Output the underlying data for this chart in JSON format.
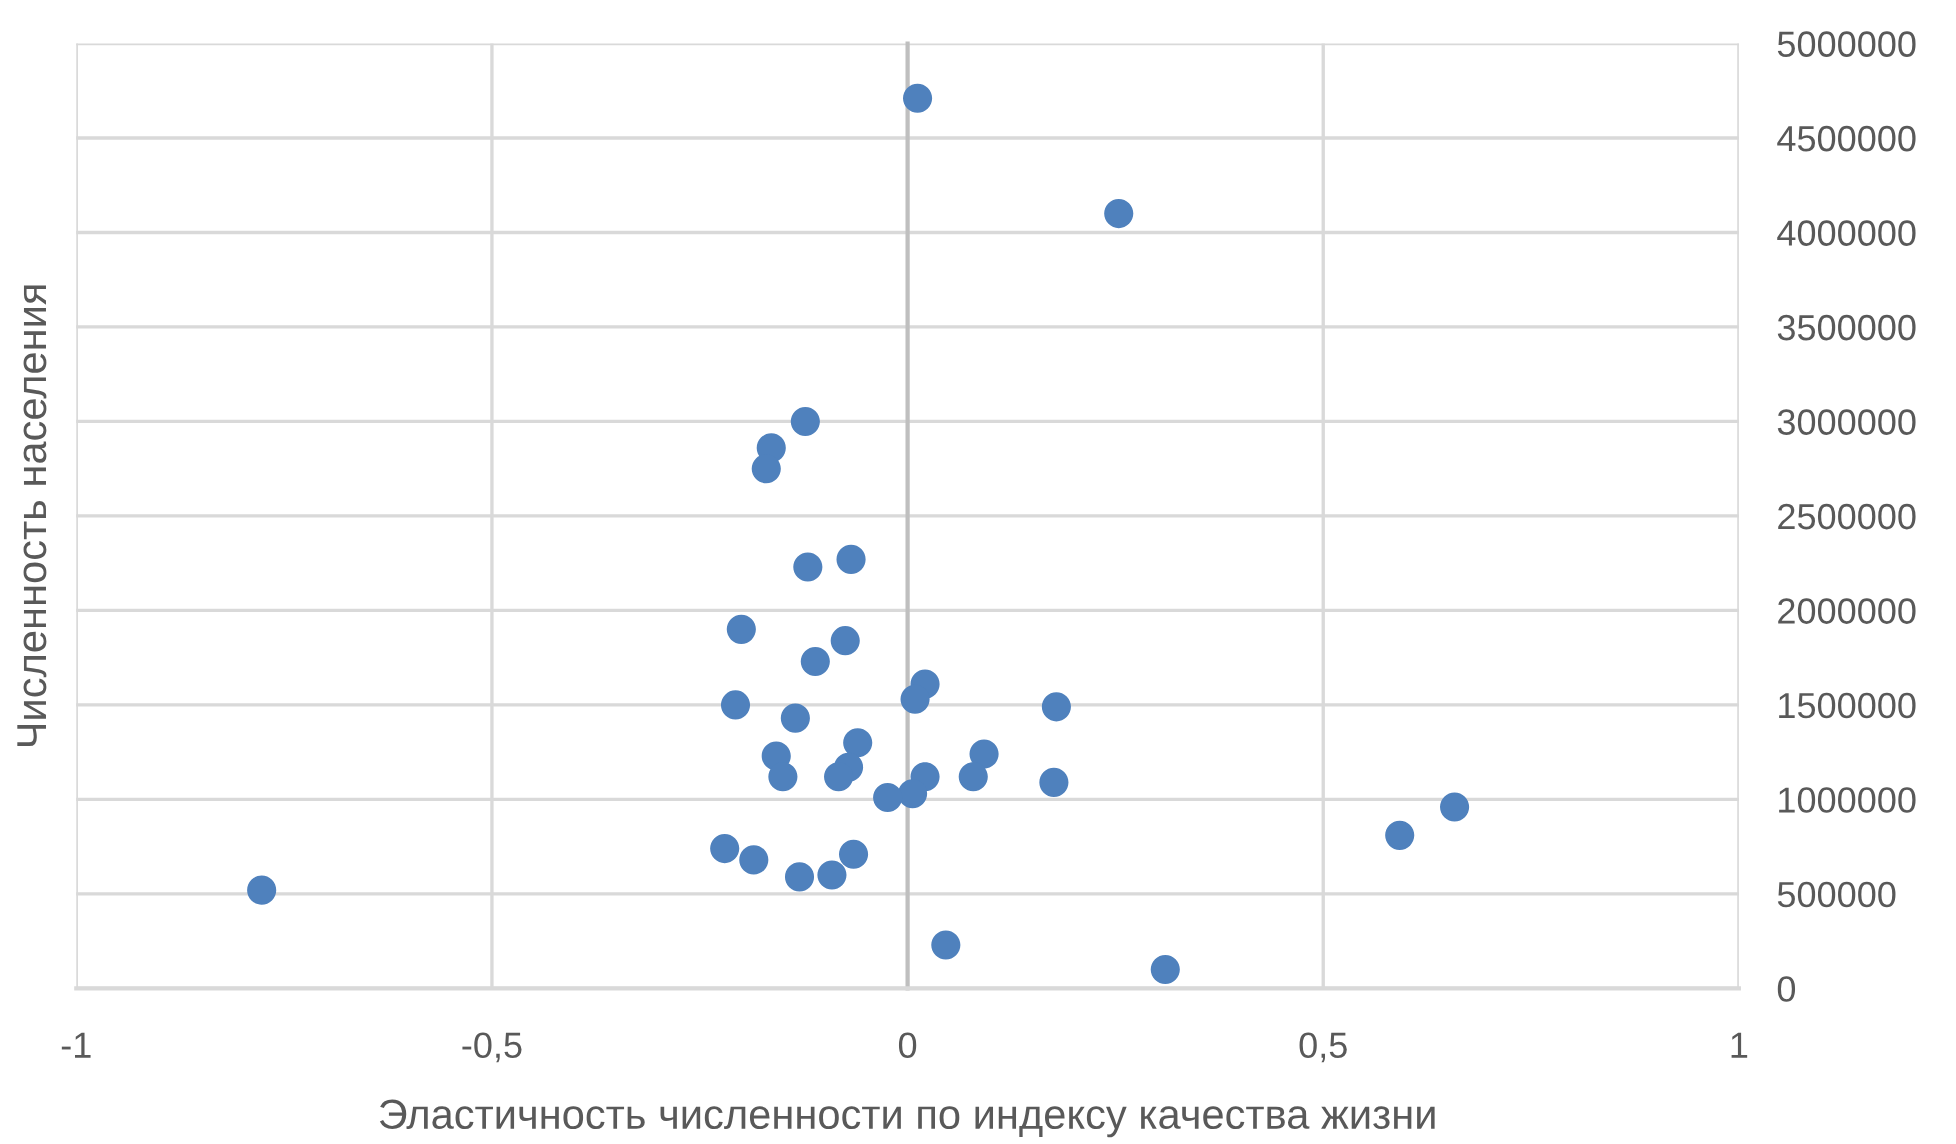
{
  "chart_data": {
    "type": "scatter",
    "xlabel": "Эластичность численности по индексу качества жизни",
    "ylabel": "Численность населения",
    "x": [
      -0.123,
      -0.164,
      -0.17,
      -0.068,
      -0.12,
      -0.2,
      -0.075,
      -0.111,
      0.021,
      0.009,
      0.179,
      -0.207,
      -0.135,
      -0.06,
      -0.158,
      -0.15,
      0.092,
      0.079,
      0.176,
      -0.071,
      -0.083,
      0.021,
      0.006,
      -0.024,
      -0.22,
      -0.185,
      -0.065,
      -0.091,
      -0.13,
      0.046,
      0.592,
      0.658,
      0.31,
      0.012,
      0.254,
      -0.777
    ],
    "series": [
      {
        "color": "#4f81bd",
        "values": [
          3000000,
          2860000,
          2750000,
          2270000,
          2230000,
          1900000,
          1840000,
          1730000,
          1610000,
          1530000,
          1490000,
          1500000,
          1430000,
          1300000,
          1230000,
          1120000,
          1240000,
          1120000,
          1090000,
          1170000,
          1120000,
          1120000,
          1030000,
          1010000,
          740000,
          680000,
          710000,
          600000,
          590000,
          230000,
          810000,
          960000,
          100000,
          4710000,
          4100000,
          520000
        ]
      }
    ],
    "xlim": [
      -1,
      1
    ],
    "xticks": [
      {
        "value": -1,
        "label": "-1"
      },
      {
        "value": -0.5,
        "label": "-0,5"
      },
      {
        "value": 0,
        "label": "0"
      },
      {
        "value": 0.5,
        "label": "0,5"
      },
      {
        "value": 1,
        "label": "1"
      }
    ],
    "ylim": [
      0,
      5000000
    ],
    "yticks": [
      0,
      500000,
      1000000,
      1500000,
      2000000,
      2500000,
      3000000,
      3500000,
      4000000,
      4500000,
      5000000
    ],
    "grid": true,
    "marker": "circle"
  }
}
